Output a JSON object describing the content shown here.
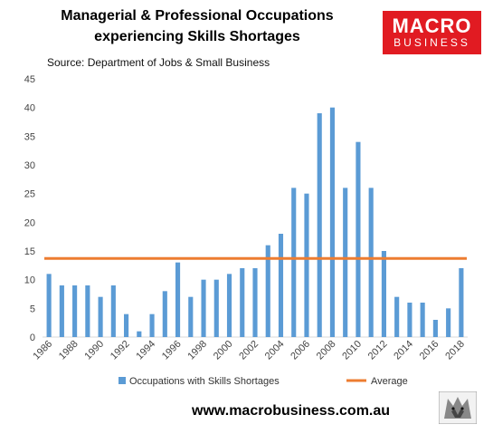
{
  "header": {
    "title_line1": "Managerial & Professional Occupations",
    "title_line2": "experiencing Skills Shortages",
    "source": "Source: Department of Jobs & Small Business"
  },
  "logo": {
    "line1": "MACRO",
    "line2": "BUSINESS",
    "color": "#e11b22"
  },
  "footer": {
    "url": "www.macrobusiness.com.au"
  },
  "chart_data": {
    "type": "bar",
    "categories": [
      "1986",
      "1987",
      "1988",
      "1989",
      "1990",
      "1991",
      "1992",
      "1993",
      "1994",
      "1995",
      "1996",
      "1997",
      "1998",
      "1999",
      "2000",
      "2001",
      "2002",
      "2003",
      "2004",
      "2005",
      "2006",
      "2007",
      "2008",
      "2009",
      "2010",
      "2011",
      "2012",
      "2013",
      "2014",
      "2015",
      "2016",
      "2017",
      "2018"
    ],
    "x_tick_labels": [
      "1986",
      "1988",
      "1990",
      "1992",
      "1994",
      "1996",
      "1998",
      "2000",
      "2002",
      "2004",
      "2006",
      "2008",
      "2010",
      "2012",
      "2014",
      "2016",
      "2018"
    ],
    "series": [
      {
        "name": "Occupations with Skills Shortages",
        "type": "bar",
        "color": "#5b9bd5",
        "values": [
          11,
          9,
          9,
          9,
          7,
          9,
          4,
          1,
          4,
          8,
          13,
          7,
          10,
          10,
          11,
          12,
          12,
          16,
          18,
          26,
          25,
          39,
          40,
          26,
          34,
          26,
          15,
          7,
          6,
          6,
          3,
          5,
          12
        ]
      },
      {
        "name": "Average",
        "type": "line",
        "color": "#ed7d31",
        "value": 13.7
      }
    ],
    "y_ticks": [
      "0",
      "5",
      "10",
      "15",
      "20",
      "25",
      "30",
      "35",
      "40",
      "45"
    ],
    "ylim": [
      0,
      45
    ],
    "grid": false,
    "legend_position": "bottom"
  }
}
